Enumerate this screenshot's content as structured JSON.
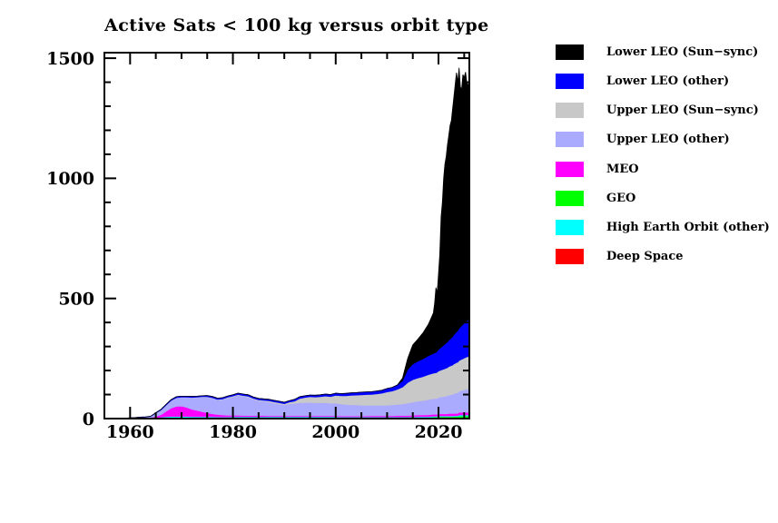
{
  "page": {
    "background": "#ffffff"
  },
  "chart_data": {
    "type": "area",
    "stacked": true,
    "title": "Active Sats < 100 kg versus orbit type",
    "xlabel": "",
    "ylabel": "",
    "xlim": [
      1955,
      2026
    ],
    "ylim": [
      0,
      1523
    ],
    "x_major_ticks": [
      1960,
      1980,
      2000,
      2020
    ],
    "x_minor_tick_step": 5,
    "y_major_ticks": [
      0,
      500,
      1000,
      1500
    ],
    "y_minor_tick_step": 100,
    "grid": false,
    "legend_position": "right",
    "x": [
      1957,
      1958,
      1959,
      1960,
      1961,
      1962,
      1963,
      1964,
      1965,
      1966,
      1967,
      1968,
      1969,
      1970,
      1971,
      1972,
      1973,
      1974,
      1975,
      1976,
      1977,
      1978,
      1979,
      1980,
      1981,
      1982,
      1983,
      1984,
      1985,
      1986,
      1987,
      1988,
      1989,
      1990,
      1991,
      1992,
      1993,
      1994,
      1995,
      1996,
      1997,
      1998,
      1999,
      2000,
      2001,
      2002,
      2003,
      2004,
      2005,
      2006,
      2007,
      2008,
      2009,
      2010,
      2011,
      2012,
      2013,
      2014,
      2015,
      2016,
      2017,
      2018,
      2019,
      2019.25,
      2019.5,
      2019.75,
      2020,
      2020.25,
      2020.5,
      2020.75,
      2021,
      2021.25,
      2021.5,
      2021.75,
      2022,
      2022.25,
      2022.5,
      2022.75,
      2023,
      2023.25,
      2023.5,
      2023.75,
      2024,
      2024.25,
      2024.5,
      2024.75,
      2025,
      2025.25,
      2025.5,
      2025.75,
      2026
    ],
    "series": [
      {
        "name": "Deep Space",
        "key": "deep-space",
        "color": "#ff0000",
        "values": [
          0,
          0,
          0,
          0,
          0,
          1,
          1,
          2,
          2,
          2,
          3,
          3,
          3,
          3,
          3,
          3,
          3,
          3,
          3,
          3,
          3,
          3,
          3,
          3,
          3,
          3,
          3,
          3,
          3,
          3,
          3,
          3,
          3,
          3,
          3,
          3,
          3,
          3,
          3,
          3,
          3,
          3,
          3,
          3,
          3,
          3,
          3,
          3,
          3,
          3,
          3,
          3,
          3,
          3,
          3,
          3,
          3,
          3,
          3,
          3,
          3,
          3,
          4,
          4,
          4,
          4,
          4,
          4,
          4,
          4,
          4,
          4,
          4,
          4,
          4,
          4,
          4,
          4,
          4,
          4,
          4,
          4,
          5,
          5,
          5,
          5,
          5,
          5,
          5,
          5,
          5
        ]
      },
      {
        "name": "GEO",
        "key": "geo",
        "color": "#00ff00",
        "values": [
          0,
          0,
          0,
          0,
          0,
          0,
          0,
          0,
          1,
          1,
          1,
          1,
          1,
          1,
          1,
          1,
          1,
          1,
          1,
          1,
          1,
          1,
          1,
          2,
          2,
          2,
          2,
          2,
          2,
          2,
          2,
          2,
          2,
          2,
          2,
          2,
          2,
          2,
          2,
          2,
          2,
          2,
          2,
          2,
          2,
          2,
          2,
          2,
          2,
          2,
          2,
          2,
          2,
          2,
          2,
          2,
          2,
          2,
          2,
          2,
          2,
          2,
          3,
          3,
          3,
          3,
          4,
          4,
          4,
          4,
          4,
          4,
          4,
          4,
          4,
          4,
          4,
          4,
          5,
          5,
          5,
          5,
          6,
          6,
          6,
          6,
          6,
          6,
          6,
          6,
          6
        ]
      },
      {
        "name": "High Earth Orbit (other)",
        "key": "heo-other",
        "color": "#00ffff",
        "values": [
          0,
          0,
          0,
          0,
          0,
          0,
          0,
          1,
          2,
          3,
          4,
          5,
          5,
          5,
          5,
          4,
          4,
          4,
          4,
          4,
          3,
          3,
          3,
          3,
          3,
          3,
          3,
          3,
          3,
          3,
          3,
          3,
          3,
          3,
          3,
          3,
          3,
          3,
          3,
          3,
          3,
          3,
          3,
          3,
          2,
          2,
          2,
          2,
          2,
          2,
          2,
          2,
          2,
          2,
          2,
          2,
          2,
          2,
          2,
          3,
          3,
          3,
          3,
          3,
          3,
          3,
          3,
          3,
          3,
          3,
          3,
          3,
          3,
          3,
          3,
          3,
          3,
          3,
          3,
          3,
          3,
          3,
          4,
          4,
          4,
          4,
          4,
          4,
          4,
          4,
          4
        ]
      },
      {
        "name": "MEO",
        "key": "meo",
        "color": "#ff00ff",
        "values": [
          0,
          0,
          0,
          0,
          0,
          0,
          0,
          1,
          4,
          10,
          22,
          35,
          42,
          43,
          38,
          31,
          26,
          21,
          16,
          12,
          10,
          8,
          7,
          6,
          6,
          5,
          5,
          5,
          5,
          5,
          4,
          4,
          4,
          4,
          4,
          4,
          4,
          4,
          4,
          4,
          4,
          4,
          4,
          4,
          4,
          4,
          4,
          4,
          4,
          4,
          5,
          5,
          5,
          5,
          5,
          6,
          6,
          6,
          7,
          7,
          7,
          8,
          8,
          8,
          8,
          8,
          9,
          9,
          9,
          9,
          9,
          9,
          9,
          9,
          10,
          10,
          10,
          10,
          10,
          10,
          10,
          10,
          11,
          11,
          11,
          11,
          11,
          11,
          11,
          11,
          12
        ]
      },
      {
        "name": "Upper LEO (other)",
        "key": "upper-leo-other",
        "color": "#aaaaff",
        "values": [
          0,
          1,
          1,
          2,
          3,
          4,
          5,
          5,
          14,
          20,
          26,
          32,
          36,
          37,
          42,
          48,
          54,
          60,
          65,
          65,
          61,
          65,
          72,
          77,
          83,
          80,
          76,
          67,
          61,
          59,
          57,
          53,
          49,
          45,
          50,
          52,
          55,
          55,
          56,
          54,
          54,
          55,
          52,
          53,
          50,
          48,
          47,
          46,
          45,
          44,
          43,
          43,
          43,
          44,
          45,
          46,
          48,
          52,
          55,
          57,
          60,
          63,
          65,
          65,
          66,
          67,
          68,
          69,
          70,
          71,
          72,
          73,
          74,
          75,
          77,
          78,
          79,
          80,
          82,
          83,
          85,
          86,
          88,
          89,
          91,
          92,
          94,
          95,
          97,
          98,
          100
        ]
      },
      {
        "name": "Upper LEO (Sun−sync)",
        "key": "upper-leo-sunsync",
        "color": "#c8c8c8",
        "values": [
          0,
          0,
          0,
          0,
          0,
          0,
          0,
          0,
          0,
          0,
          0,
          0,
          0,
          0,
          0,
          1,
          1,
          2,
          2,
          2,
          2,
          2,
          3,
          3,
          3,
          3,
          4,
          4,
          4,
          4,
          5,
          5,
          5,
          5,
          7,
          9,
          17,
          21,
          23,
          24,
          25,
          27,
          28,
          32,
          34,
          36,
          39,
          41,
          43,
          45,
          46,
          48,
          51,
          55,
          58,
          63,
          70,
          85,
          93,
          97,
          100,
          104,
          106,
          107,
          107,
          108,
          110,
          111,
          112,
          113,
          114,
          115,
          116,
          117,
          119,
          120,
          121,
          122,
          124,
          125,
          126,
          127,
          128,
          129,
          130,
          131,
          132,
          133,
          134,
          134,
          135
        ]
      },
      {
        "name": "Lower LEO (other)",
        "key": "lower-leo-other",
        "color": "#0000ff",
        "values": [
          0,
          0,
          0,
          1,
          1,
          1,
          1,
          1,
          1,
          2,
          3,
          3,
          4,
          4,
          4,
          4,
          4,
          4,
          5,
          5,
          5,
          5,
          5,
          5,
          6,
          6,
          6,
          6,
          6,
          6,
          6,
          6,
          6,
          6,
          6,
          7,
          7,
          7,
          7,
          7,
          8,
          8,
          8,
          9,
          9,
          10,
          10,
          10,
          11,
          11,
          11,
          12,
          12,
          14,
          15,
          18,
          27,
          55,
          65,
          70,
          74,
          78,
          82,
          84,
          85,
          87,
          90,
          92,
          95,
          97,
          100,
          102,
          105,
          107,
          110,
          112,
          115,
          118,
          122,
          125,
          128,
          131,
          134,
          137,
          140,
          143,
          146,
          148,
          150,
          152,
          154
        ]
      },
      {
        "name": "Lower LEO (Sun−sync)",
        "key": "lower-leo-sunsync",
        "color": "#000000",
        "values": [
          0,
          0,
          0,
          0,
          0,
          0,
          0,
          0,
          0,
          0,
          0,
          0,
          0,
          0,
          0,
          0,
          0,
          0,
          0,
          0,
          0,
          0,
          0,
          0,
          0,
          0,
          0,
          0,
          0,
          0,
          0,
          0,
          0,
          0,
          0,
          0,
          0,
          0,
          0,
          0,
          0,
          0,
          0,
          0,
          0,
          0,
          0,
          0,
          0,
          0,
          0,
          0,
          0,
          0,
          0,
          0,
          10,
          45,
          80,
          92,
          108,
          130,
          169,
          207,
          269,
          243,
          312,
          390,
          543,
          600,
          694,
          750,
          775,
          820,
          853,
          890,
          904,
          950,
          990,
          1035,
          1079,
          1035,
          1084,
          1000,
          983,
          1040,
          1022,
          1040,
          993,
          980,
          964
        ]
      }
    ],
    "legend": [
      {
        "label": "Lower LEO (Sun−sync)",
        "color": "#000000"
      },
      {
        "label": "Lower LEO (other)",
        "color": "#0000ff"
      },
      {
        "label": "Upper LEO (Sun−sync)",
        "color": "#c8c8c8"
      },
      {
        "label": "Upper LEO (other)",
        "color": "#aaaaff"
      },
      {
        "label": "MEO",
        "color": "#ff00ff"
      },
      {
        "label": "GEO",
        "color": "#00ff00"
      },
      {
        "label": "High Earth Orbit (other)",
        "color": "#00ffff"
      },
      {
        "label": "Deep Space",
        "color": "#ff0000"
      }
    ]
  }
}
